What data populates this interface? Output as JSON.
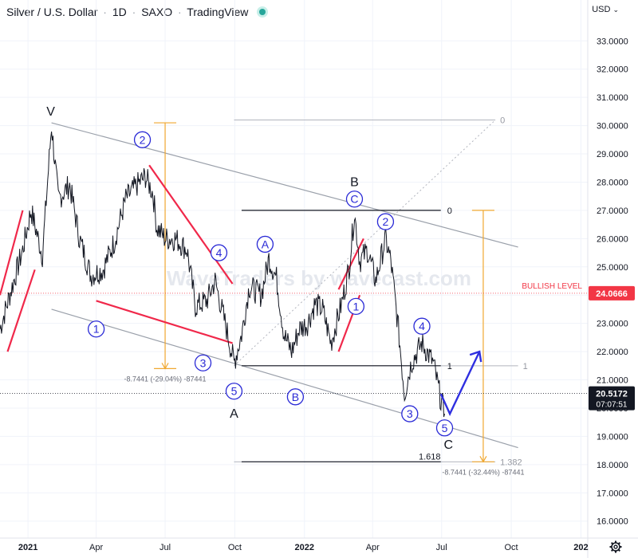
{
  "header": {
    "symbol": "Silver",
    "quote": "U.S. Dollar",
    "interval": "1D",
    "exchange": "SAXO",
    "source": "TradingView",
    "currency": "USD"
  },
  "watermark": "WaveTraders by wavecast.com",
  "colors": {
    "price": "#131722",
    "wave_label": "#2a2ad6",
    "wedge": "#f0284a",
    "fib": "#f0a830",
    "channel": "#9aa0aa",
    "level_red": "#f23645",
    "badge_dark": "#131722"
  },
  "chart_data": {
    "type": "line",
    "title": "Silver / U.S. Dollar · 1D · SAXO · TradingView",
    "ylim": [
      15.4,
      33.6
    ],
    "y_ticks": [
      16,
      17,
      18,
      19,
      20,
      21,
      22,
      23,
      24,
      25,
      26,
      27,
      28,
      29,
      30,
      31,
      32,
      33
    ],
    "y_tick_labels": [
      "16.0000",
      "17.0000",
      "18.0000",
      "19.0000",
      "20.0000",
      "21.0000",
      "22.0000",
      "23.0000",
      "24.0000",
      "25.0000",
      "26.0000",
      "27.0000",
      "28.0000",
      "29.0000",
      "30.0000",
      "31.0000",
      "32.0000",
      "33.0000"
    ],
    "x_range": [
      "2020-11-25",
      "2023-01-10"
    ],
    "x_ticks": [
      {
        "date": "2021-01-01",
        "label": "2021",
        "bold": true
      },
      {
        "date": "2021-04-01",
        "label": "Apr",
        "bold": false
      },
      {
        "date": "2021-07-01",
        "label": "Jul",
        "bold": false
      },
      {
        "date": "2021-10-01",
        "label": "Oct",
        "bold": false
      },
      {
        "date": "2022-01-01",
        "label": "2022",
        "bold": true
      },
      {
        "date": "2022-04-01",
        "label": "Apr",
        "bold": false
      },
      {
        "date": "2022-07-01",
        "label": "Jul",
        "bold": false
      },
      {
        "date": "2022-10-01",
        "label": "Oct",
        "bold": false
      },
      {
        "date": "2023-01-01",
        "label": "202",
        "bold": true
      }
    ],
    "series": [
      {
        "points": [
          [
            "2020-11-25",
            22.8
          ],
          [
            "2020-12-10",
            24.2
          ],
          [
            "2020-12-25",
            25.6
          ],
          [
            "2021-01-05",
            27.0
          ],
          [
            "2021-01-20",
            25.4
          ],
          [
            "2021-02-01",
            30.0
          ],
          [
            "2021-02-10",
            27.4
          ],
          [
            "2021-02-25",
            27.9
          ],
          [
            "2021-03-10",
            26.0
          ],
          [
            "2021-03-25",
            24.7
          ],
          [
            "2021-04-10",
            24.9
          ],
          [
            "2021-04-25",
            25.9
          ],
          [
            "2021-05-10",
            27.4
          ],
          [
            "2021-05-25",
            27.9
          ],
          [
            "2021-06-05",
            28.2
          ],
          [
            "2021-06-15",
            27.6
          ],
          [
            "2021-06-20",
            26.4
          ],
          [
            "2021-07-01",
            26.0
          ],
          [
            "2021-07-15",
            26.0
          ],
          [
            "2021-07-30",
            25.6
          ],
          [
            "2021-08-10",
            23.6
          ],
          [
            "2021-08-25",
            23.8
          ],
          [
            "2021-09-05",
            24.5
          ],
          [
            "2021-09-20",
            22.8
          ],
          [
            "2021-09-30",
            21.6
          ],
          [
            "2021-10-10",
            22.6
          ],
          [
            "2021-10-20",
            24.3
          ],
          [
            "2021-11-05",
            24.0
          ],
          [
            "2021-11-15",
            25.3
          ],
          [
            "2021-11-25",
            24.6
          ],
          [
            "2021-12-05",
            22.6
          ],
          [
            "2021-12-15",
            22.0
          ],
          [
            "2021-12-25",
            22.8
          ],
          [
            "2022-01-05",
            23.0
          ],
          [
            "2022-01-15",
            23.7
          ],
          [
            "2022-01-25",
            23.5
          ],
          [
            "2022-02-05",
            22.3
          ],
          [
            "2022-02-20",
            23.8
          ],
          [
            "2022-03-01",
            25.0
          ],
          [
            "2022-03-08",
            26.9
          ],
          [
            "2022-03-15",
            25.2
          ],
          [
            "2022-03-25",
            25.6
          ],
          [
            "2022-04-05",
            24.5
          ],
          [
            "2022-04-18",
            26.0
          ],
          [
            "2022-04-25",
            25.2
          ],
          [
            "2022-05-05",
            22.8
          ],
          [
            "2022-05-13",
            20.5
          ],
          [
            "2022-05-22",
            21.6
          ],
          [
            "2022-06-05",
            22.3
          ],
          [
            "2022-06-20",
            21.6
          ],
          [
            "2022-06-30",
            20.3
          ],
          [
            "2022-07-05",
            19.8
          ]
        ]
      }
    ],
    "current_price": {
      "value": 20.5172,
      "label": "20.5172",
      "countdown": "07:07:51"
    },
    "bullish_level": {
      "value": 24.0666,
      "label": "BULLISH LEVEL",
      "price_label": "24.0666"
    },
    "wave_labels": [
      {
        "text": "V",
        "date": "2021-01-31",
        "y": 30.5,
        "circled": false
      },
      {
        "text": "2",
        "date": "2021-06-01",
        "y": 29.5,
        "circled": true
      },
      {
        "text": "4",
        "date": "2021-09-10",
        "y": 25.5,
        "circled": true
      },
      {
        "text": "1",
        "date": "2021-04-01",
        "y": 22.8,
        "circled": true
      },
      {
        "text": "3",
        "date": "2021-08-20",
        "y": 21.6,
        "circled": true
      },
      {
        "text": "5",
        "date": "2021-09-30",
        "y": 20.6,
        "circled": true
      },
      {
        "text": "A",
        "date": "2021-09-30",
        "y": 19.8,
        "circled": false
      },
      {
        "text": "A",
        "date": "2021-11-10",
        "y": 25.8,
        "circled": true
      },
      {
        "text": "B",
        "date": "2021-12-20",
        "y": 20.4,
        "circled": true
      },
      {
        "text": "B",
        "date": "2022-03-08",
        "y": 28.0,
        "circled": false
      },
      {
        "text": "C",
        "date": "2022-03-08",
        "y": 27.4,
        "circled": true
      },
      {
        "text": "2",
        "date": "2022-04-18",
        "y": 26.6,
        "circled": true
      },
      {
        "text": "1",
        "date": "2022-03-10",
        "y": 23.6,
        "circled": true
      },
      {
        "text": "4",
        "date": "2022-06-05",
        "y": 22.9,
        "circled": true
      },
      {
        "text": "3",
        "date": "2022-05-20",
        "y": 19.8,
        "circled": true
      },
      {
        "text": "5",
        "date": "2022-07-05",
        "y": 19.3,
        "circled": true
      },
      {
        "text": "C",
        "date": "2022-07-10",
        "y": 18.7,
        "circled": false
      }
    ],
    "channel_lines": [
      {
        "from": [
          "2021-02-01",
          30.1
        ],
        "to": [
          "2022-10-10",
          25.7
        ]
      },
      {
        "from": [
          "2021-02-01",
          23.5
        ],
        "to": [
          "2022-10-10",
          18.6
        ]
      }
    ],
    "fib_projection": {
      "upper": {
        "level": "0",
        "y": 30.2,
        "from": "2021-09-30",
        "to": "2022-09-10"
      },
      "lower": {
        "level": "1",
        "y": 21.5,
        "from": "2021-10-20",
        "to": "2022-10-10"
      },
      "extension": {
        "level": "1.382",
        "y": 18.1,
        "from": "2021-09-30",
        "to": "2022-09-10"
      },
      "measure": {
        "label": "-8.7441 (-29.04%) -87441",
        "date": "2021-07-01",
        "top": 30.1,
        "bottom": 21.4
      }
    },
    "fib_retracement": {
      "top": {
        "level": "0",
        "y": 27.0,
        "from": "2021-10-10",
        "to": "2022-06-30"
      },
      "bottom": {
        "level": "1",
        "y": 21.5,
        "from": "2021-10-10",
        "to": "2022-06-30"
      },
      "target": {
        "level": "1.618",
        "y": 18.1,
        "from": "2021-10-10",
        "to": "2022-06-30"
      },
      "measure": {
        "label": "-8.7441 (-32.44%) -87441",
        "date": "2022-08-25",
        "top": 27.0,
        "bottom": 18.1
      }
    },
    "projection_arrow": [
      [
        "2022-06-30",
        20.5
      ],
      [
        "2022-07-12",
        19.8
      ],
      [
        "2022-08-20",
        22.0
      ]
    ]
  }
}
